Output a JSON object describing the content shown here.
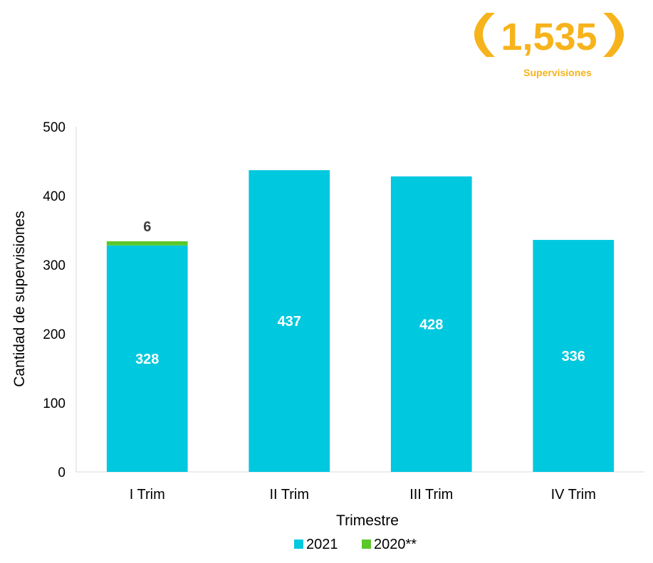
{
  "badge": {
    "total": "1,535",
    "label": "Supervisiones",
    "color": "#F7B31B"
  },
  "chart_data": {
    "type": "bar",
    "stacked": true,
    "categories": [
      "I Trim",
      "II Trim",
      "III Trim",
      "IV Trim"
    ],
    "series": [
      {
        "name": "2021",
        "values": [
          328,
          437,
          428,
          336
        ],
        "color": "#00C8DF",
        "label_color": "#ffffff"
      },
      {
        "name": "2020**",
        "values": [
          6,
          0,
          0,
          0
        ],
        "color": "#5CC72B",
        "label_color": "#404040"
      }
    ],
    "xlabel": "Trimestre",
    "ylabel": "Cantidad de supervisiones",
    "ylim": [
      0,
      500
    ],
    "yticks": [
      0,
      100,
      200,
      300,
      400,
      500
    ],
    "grid": false,
    "legend_position": "bottom"
  }
}
